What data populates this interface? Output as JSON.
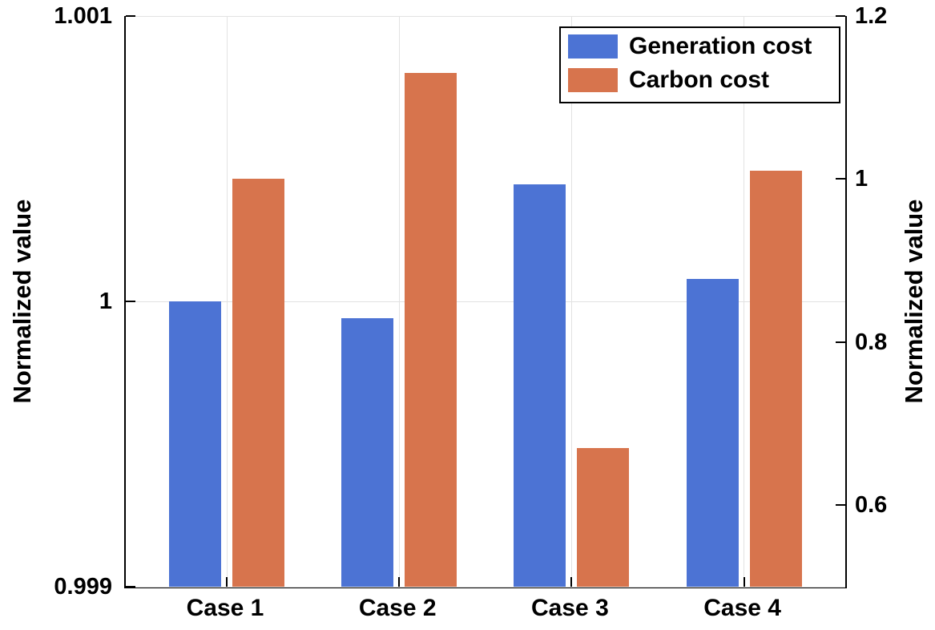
{
  "chart_data": {
    "type": "bar",
    "categories": [
      "Case 1",
      "Case 2",
      "Case 3",
      "Case 4"
    ],
    "series": [
      {
        "name": "Generation cost",
        "axis": "left",
        "color": "#4C73D4",
        "values": [
          1.0,
          0.99994,
          1.00041,
          1.00008
        ]
      },
      {
        "name": "Carbon cost",
        "axis": "right",
        "color": "#D7744D",
        "values": [
          1.0,
          1.13,
          0.67,
          1.01
        ]
      }
    ],
    "left_axis": {
      "label": "Normalized value",
      "range": [
        0.999,
        1.001
      ],
      "ticks": [
        0.999,
        1.0,
        1.001
      ],
      "tick_labels": [
        "0.999",
        "1",
        "1.001"
      ]
    },
    "right_axis": {
      "label": "Normalized value",
      "range": [
        0.5,
        1.2
      ],
      "ticks": [
        0.6,
        0.8,
        1.0,
        1.2
      ],
      "tick_labels": [
        "0.6",
        "0.8",
        "1",
        "1.2"
      ]
    },
    "grid": true,
    "legend_position": "top-right",
    "tick_direction": "in"
  },
  "colors": {
    "background": "#FFFFFF",
    "axis": "#000000",
    "grid": "#E2E2E2",
    "generation_cost": "#4C73D4",
    "carbon_cost": "#D7744D"
  }
}
